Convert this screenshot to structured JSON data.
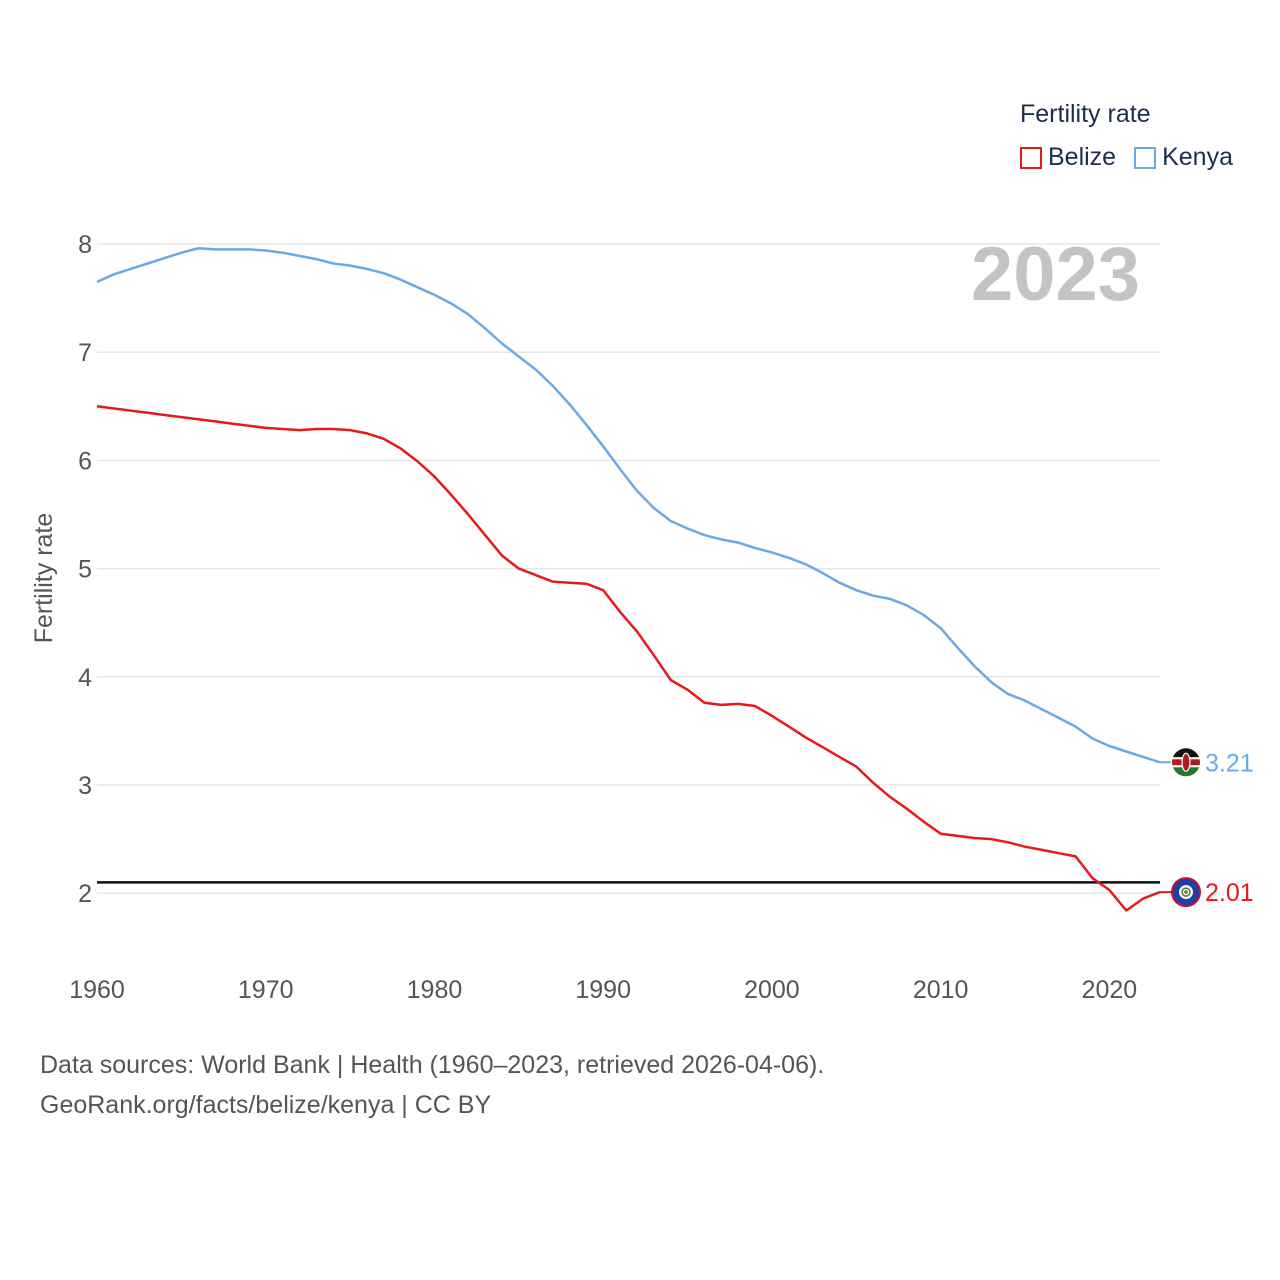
{
  "legend": {
    "title": "Fertility rate",
    "series": [
      {
        "name": "Belize",
        "color": "#e8191c"
      },
      {
        "name": "Kenya",
        "color": "#6aaae4"
      }
    ]
  },
  "footer": {
    "line1": "Data sources: World Bank | Health (1960–2023, retrieved 2026-04-06).",
    "line2": "GeoRank.org/facts/belize/kenya | CC BY"
  },
  "chart_data": {
    "type": "line",
    "title": "",
    "year_stamp": "2023",
    "xlabel": "",
    "ylabel": "Fertility rate",
    "xlim": [
      1960,
      2023
    ],
    "ylim": [
      1.4,
      8.2
    ],
    "x_ticks": [
      1960,
      1970,
      1980,
      1990,
      2000,
      2010,
      2020
    ],
    "y_ticks": [
      2,
      3,
      4,
      5,
      6,
      7,
      8
    ],
    "reference_line": 2.1,
    "x": [
      1960,
      1961,
      1962,
      1963,
      1964,
      1965,
      1966,
      1967,
      1968,
      1969,
      1970,
      1971,
      1972,
      1973,
      1974,
      1975,
      1976,
      1977,
      1978,
      1979,
      1980,
      1981,
      1982,
      1983,
      1984,
      1985,
      1986,
      1987,
      1988,
      1989,
      1990,
      1991,
      1992,
      1993,
      1994,
      1995,
      1996,
      1997,
      1998,
      1999,
      2000,
      2001,
      2002,
      2003,
      2004,
      2005,
      2006,
      2007,
      2008,
      2009,
      2010,
      2011,
      2012,
      2013,
      2014,
      2015,
      2016,
      2017,
      2018,
      2019,
      2020,
      2021,
      2022,
      2023
    ],
    "series": [
      {
        "name": "Belize",
        "color": "#e8191c",
        "end_label": "2.01",
        "values": [
          6.5,
          6.48,
          6.46,
          6.44,
          6.42,
          6.4,
          6.38,
          6.36,
          6.34,
          6.32,
          6.3,
          6.29,
          6.28,
          6.29,
          6.29,
          6.28,
          6.25,
          6.2,
          6.11,
          5.99,
          5.85,
          5.68,
          5.5,
          5.31,
          5.12,
          5.0,
          4.94,
          4.88,
          4.87,
          4.86,
          4.8,
          4.6,
          4.42,
          4.2,
          3.97,
          3.88,
          3.76,
          3.74,
          3.75,
          3.73,
          3.64,
          3.54,
          3.44,
          3.35,
          3.26,
          3.17,
          3.02,
          2.89,
          2.78,
          2.66,
          2.55,
          2.53,
          2.51,
          2.5,
          2.47,
          2.43,
          2.4,
          2.37,
          2.34,
          2.14,
          2.03,
          1.84,
          1.95,
          2.01
        ]
      },
      {
        "name": "Kenya",
        "color": "#6aaae4",
        "end_label": "3.21",
        "values": [
          7.65,
          7.72,
          7.77,
          7.82,
          7.87,
          7.92,
          7.96,
          7.95,
          7.95,
          7.95,
          7.94,
          7.92,
          7.89,
          7.86,
          7.82,
          7.8,
          7.77,
          7.73,
          7.67,
          7.6,
          7.53,
          7.45,
          7.35,
          7.22,
          7.08,
          6.96,
          6.84,
          6.69,
          6.52,
          6.33,
          6.13,
          5.92,
          5.72,
          5.56,
          5.44,
          5.37,
          5.31,
          5.27,
          5.24,
          5.19,
          5.15,
          5.1,
          5.04,
          4.96,
          4.87,
          4.8,
          4.75,
          4.72,
          4.66,
          4.57,
          4.45,
          4.27,
          4.1,
          3.95,
          3.84,
          3.78,
          3.7,
          3.62,
          3.54,
          3.43,
          3.36,
          3.31,
          3.26,
          3.21
        ]
      }
    ]
  }
}
